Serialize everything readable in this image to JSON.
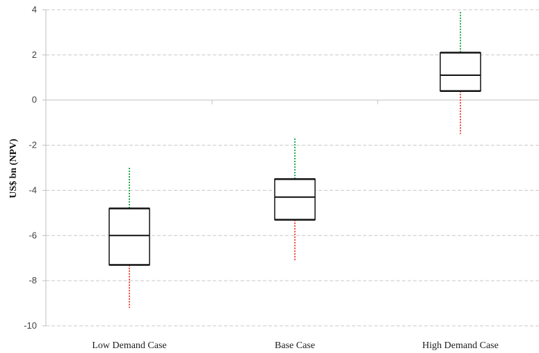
{
  "chart_data": {
    "type": "boxplot",
    "title": "",
    "xlabel": "",
    "ylabel": "US$ bn (NPV)",
    "ylim": [
      -10,
      4
    ],
    "yticks": [
      4,
      2,
      0,
      -2,
      -4,
      -6,
      -8,
      -10
    ],
    "ytick_labels": [
      "4",
      "2",
      "0",
      "-2",
      "-4",
      "-6",
      "-8",
      "-10"
    ],
    "grid": "horizontal dashed",
    "categories": [
      "Low Demand Case",
      "Base Case",
      "High Demand Case"
    ],
    "boxes": [
      {
        "category": "Low Demand Case",
        "whisker_high": -3.0,
        "q3": -4.8,
        "median": -6.0,
        "q1": -7.3,
        "whisker_low": -9.2
      },
      {
        "category": "Base Case",
        "whisker_high": -1.7,
        "q3": -3.5,
        "median": -4.3,
        "q1": -5.3,
        "whisker_low": -7.1
      },
      {
        "category": "High Demand Case",
        "whisker_high": 3.9,
        "q3": 2.1,
        "median": 1.1,
        "q1": 0.4,
        "whisker_low": -1.5
      }
    ],
    "colors": {
      "upper_whisker": "#22a84a",
      "lower_whisker": "#e8403a",
      "box": "#111111",
      "grid": "#c8c8c8",
      "axis": "#bfbfbf"
    }
  }
}
